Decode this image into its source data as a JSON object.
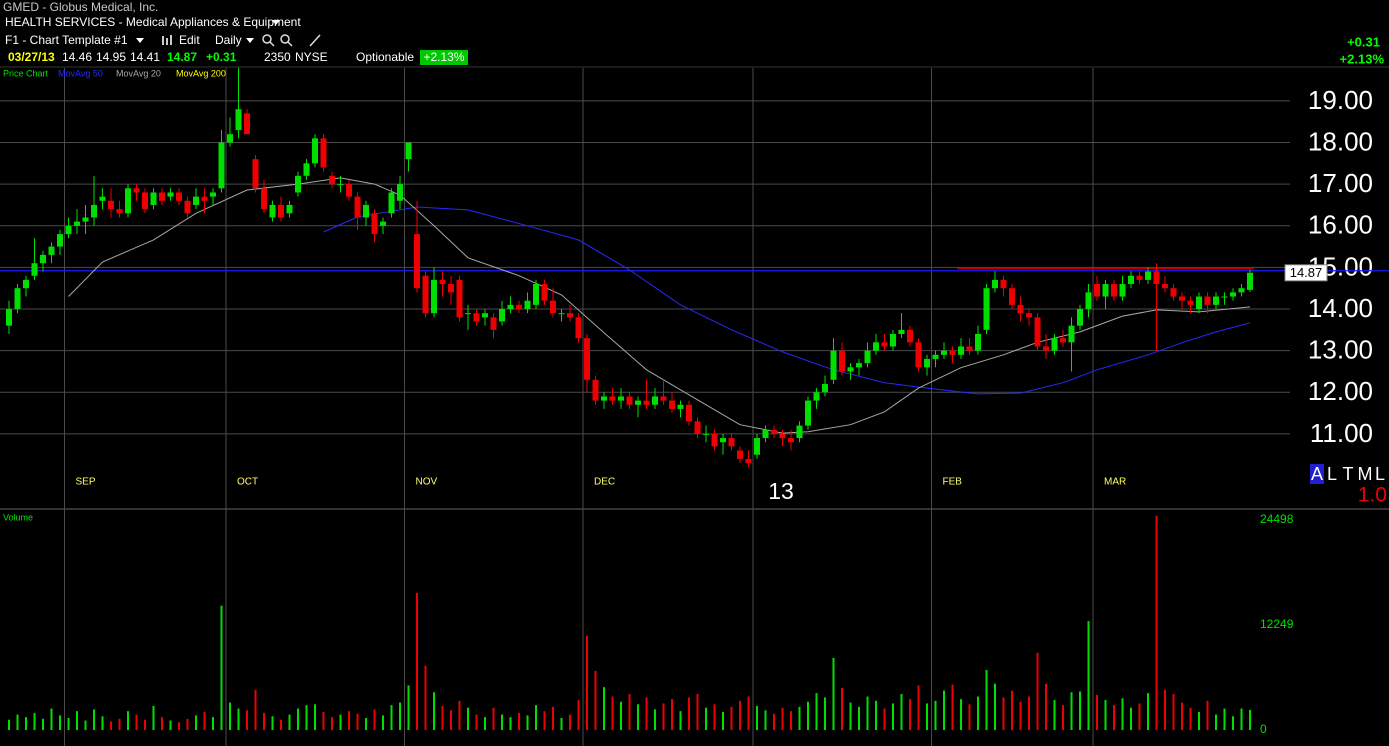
{
  "header": {
    "symbol_line": "GMED - Globus Medical, Inc.",
    "sector": "HEALTH SERVICES - Medical Appliances & Equipment",
    "template": "F1 - Chart Template #1",
    "edit": "Edit",
    "period": "Daily",
    "date": "03/27/13",
    "exchange": "NYSE",
    "optionable": "Optionable",
    "change": "+0.31",
    "change_pct": "+2.13%"
  },
  "toolbar": {
    "modes": [
      "A",
      "L",
      "T",
      "M",
      "L"
    ],
    "scale": "1.0"
  },
  "chart_data": [
    {
      "type": "candlestick",
      "title": "Price Chart",
      "up_color": "#00e000",
      "down_color": "#ee0000",
      "open": [
        13.6,
        14.0,
        14.5,
        14.8,
        15.1,
        15.3,
        15.5,
        15.8,
        16.0,
        16.1,
        16.2,
        16.6,
        16.6,
        16.4,
        16.3,
        16.9,
        16.8,
        16.5,
        16.8,
        16.7,
        16.8,
        16.6,
        16.5,
        16.7,
        16.7,
        16.9,
        18.0,
        18.3,
        18.7,
        17.6,
        16.9,
        16.2,
        16.5,
        16.3,
        16.8,
        17.2,
        17.5,
        18.1,
        17.2,
        17.0,
        17.0,
        16.7,
        16.2,
        16.3,
        16.0,
        16.3,
        16.6,
        17.6,
        15.8,
        14.8,
        13.9,
        14.7,
        14.6,
        14.7,
        13.9,
        13.9,
        13.8,
        13.8,
        13.7,
        14.0,
        14.1,
        14.0,
        14.1,
        14.6,
        14.2,
        13.9,
        13.9,
        13.8,
        13.3,
        12.3,
        11.8,
        11.9,
        11.8,
        11.9,
        11.7,
        11.8,
        11.7,
        11.9,
        11.8,
        11.6,
        11.7,
        11.3,
        11.0,
        11.0,
        10.8,
        10.9,
        10.6,
        10.4,
        10.5,
        10.9,
        11.1,
        11.0,
        10.9,
        10.9,
        11.2,
        11.8,
        12.0,
        12.3,
        13.0,
        12.5,
        12.6,
        12.7,
        13.0,
        13.2,
        13.1,
        13.4,
        13.5,
        13.2,
        12.6,
        12.8,
        12.9,
        13.0,
        12.9,
        13.1,
        13.0,
        13.5,
        14.5,
        14.7,
        14.5,
        14.1,
        13.9,
        13.8,
        13.1,
        13.0,
        13.3,
        13.2,
        13.6,
        14.0,
        14.6,
        14.3,
        14.6,
        14.3,
        14.6,
        14.8,
        14.7,
        14.9,
        14.6,
        14.5,
        14.3,
        14.2,
        14.0,
        14.3,
        14.1,
        14.3,
        14.3,
        14.4,
        14.46
      ],
      "high": [
        14.2,
        14.6,
        14.8,
        15.7,
        15.4,
        15.6,
        15.9,
        16.2,
        16.4,
        16.5,
        17.2,
        16.9,
        16.9,
        16.6,
        17.0,
        17.0,
        16.9,
        16.9,
        16.9,
        16.9,
        16.9,
        16.7,
        16.9,
        16.9,
        16.9,
        18.3,
        18.6,
        19.8,
        18.8,
        17.7,
        17.1,
        16.6,
        16.7,
        16.6,
        17.3,
        17.6,
        18.2,
        18.2,
        17.3,
        17.2,
        17.1,
        16.8,
        16.6,
        16.4,
        16.2,
        16.9,
        17.2,
        18.0,
        16.6,
        14.9,
        15.0,
        14.9,
        14.8,
        14.8,
        14.1,
        14.0,
        14.0,
        13.9,
        14.2,
        14.3,
        14.2,
        14.4,
        14.7,
        14.7,
        14.5,
        14.0,
        14.1,
        13.9,
        13.4,
        12.4,
        12.0,
        12.1,
        12.1,
        12.0,
        11.9,
        12.3,
        12.1,
        12.3,
        12.0,
        11.8,
        11.8,
        11.4,
        11.2,
        11.1,
        11.0,
        11.0,
        10.7,
        10.6,
        11.0,
        11.2,
        11.2,
        11.1,
        11.1,
        11.3,
        11.9,
        12.1,
        12.4,
        13.3,
        13.2,
        12.7,
        12.8,
        13.2,
        13.4,
        13.4,
        13.5,
        13.9,
        13.6,
        13.3,
        12.9,
        13.0,
        13.2,
        13.1,
        13.3,
        13.3,
        13.6,
        14.6,
        14.9,
        14.8,
        14.6,
        14.3,
        14.0,
        13.9,
        13.4,
        13.4,
        13.5,
        13.8,
        14.1,
        14.6,
        14.8,
        14.7,
        14.7,
        14.8,
        14.9,
        14.9,
        15.0,
        15.1,
        14.8,
        14.6,
        14.4,
        14.3,
        14.4,
        14.4,
        14.4,
        14.4,
        14.5,
        14.6,
        14.95
      ],
      "low": [
        13.4,
        13.9,
        14.3,
        14.7,
        14.9,
        15.1,
        15.3,
        15.7,
        15.8,
        15.8,
        16.0,
        16.4,
        16.2,
        16.2,
        16.2,
        16.6,
        16.3,
        16.4,
        16.5,
        16.6,
        16.5,
        16.2,
        16.4,
        16.3,
        16.5,
        16.8,
        17.9,
        18.1,
        18.2,
        16.8,
        16.3,
        16.1,
        16.1,
        16.2,
        16.7,
        17.1,
        17.4,
        17.3,
        16.9,
        16.8,
        16.6,
        15.9,
        16.0,
        15.6,
        15.8,
        16.2,
        16.4,
        17.3,
        14.4,
        13.8,
        13.8,
        14.3,
        14.1,
        13.7,
        13.5,
        13.6,
        13.6,
        13.3,
        13.6,
        13.9,
        13.9,
        13.9,
        14.0,
        14.1,
        13.8,
        13.7,
        13.7,
        13.2,
        12.0,
        11.7,
        11.6,
        11.7,
        11.6,
        11.6,
        11.4,
        11.6,
        11.6,
        11.7,
        11.5,
        11.4,
        11.2,
        10.9,
        10.8,
        10.6,
        10.5,
        10.6,
        10.3,
        10.2,
        10.4,
        10.8,
        10.9,
        10.7,
        10.6,
        10.8,
        11.1,
        11.6,
        11.9,
        12.2,
        12.4,
        12.3,
        12.4,
        12.6,
        12.9,
        13.0,
        13.0,
        13.3,
        13.1,
        12.5,
        12.4,
        12.6,
        12.8,
        12.7,
        12.8,
        12.9,
        12.9,
        13.4,
        14.4,
        14.3,
        14.0,
        13.7,
        13.6,
        13.0,
        12.8,
        12.9,
        13.1,
        12.5,
        13.5,
        13.8,
        14.2,
        14.0,
        14.2,
        14.2,
        14.5,
        14.6,
        14.6,
        13.0,
        14.4,
        14.2,
        14.0,
        13.9,
        13.9,
        13.9,
        14.0,
        14.1,
        14.2,
        14.3,
        14.41
      ],
      "close": [
        14.0,
        14.5,
        14.7,
        15.1,
        15.3,
        15.5,
        15.8,
        16.0,
        16.1,
        16.2,
        16.5,
        16.7,
        16.4,
        16.3,
        16.9,
        16.8,
        16.4,
        16.8,
        16.6,
        16.8,
        16.6,
        16.3,
        16.7,
        16.6,
        16.8,
        18.0,
        18.2,
        18.8,
        18.2,
        16.9,
        16.4,
        16.5,
        16.2,
        16.5,
        17.2,
        17.5,
        18.1,
        17.4,
        17.0,
        17.0,
        16.7,
        16.2,
        16.5,
        15.8,
        16.1,
        16.8,
        17.0,
        18.0,
        14.5,
        13.9,
        14.7,
        14.6,
        14.4,
        13.8,
        13.9,
        13.7,
        13.9,
        13.5,
        14.0,
        14.1,
        14.0,
        14.2,
        14.6,
        14.2,
        13.9,
        13.9,
        13.8,
        13.3,
        12.3,
        11.8,
        11.9,
        11.8,
        11.9,
        11.7,
        11.8,
        11.7,
        11.9,
        11.8,
        11.6,
        11.7,
        11.3,
        11.0,
        11.0,
        10.7,
        10.9,
        10.7,
        10.4,
        10.3,
        10.9,
        11.1,
        11.0,
        10.9,
        10.8,
        11.2,
        11.8,
        12.0,
        12.2,
        13.0,
        12.5,
        12.6,
        12.7,
        13.0,
        13.2,
        13.1,
        13.4,
        13.5,
        13.2,
        12.6,
        12.8,
        12.9,
        13.0,
        12.9,
        13.1,
        13.0,
        13.4,
        14.5,
        14.7,
        14.5,
        14.1,
        13.9,
        13.8,
        13.1,
        13.0,
        13.3,
        13.2,
        13.6,
        14.0,
        14.4,
        14.3,
        14.6,
        14.3,
        14.6,
        14.8,
        14.7,
        14.9,
        14.6,
        14.5,
        14.3,
        14.2,
        14.1,
        14.3,
        14.1,
        14.3,
        14.3,
        14.4,
        14.5,
        14.87
      ],
      "series": [
        {
          "name": "MovAvg 50",
          "color": "#2828ff",
          "x": [
            37,
            41,
            48,
            54,
            61,
            67,
            73,
            79,
            85,
            91,
            97,
            103,
            108,
            114,
            119,
            124,
            128,
            134,
            138,
            142,
            146
          ],
          "values": [
            15.85,
            16.21,
            16.45,
            16.38,
            16.0,
            15.66,
            14.94,
            14.1,
            13.5,
            12.97,
            12.54,
            12.23,
            12.1,
            11.96,
            11.98,
            12.23,
            12.54,
            12.9,
            13.19,
            13.45,
            13.67
          ]
        },
        {
          "name": "MovAvg 20",
          "color": "#a8a8a8",
          "x": [
            7,
            11,
            17,
            22,
            28,
            34,
            39,
            43,
            46,
            50,
            54,
            60,
            65,
            70,
            75,
            81,
            86,
            91,
            94,
            99,
            103,
            107,
            112,
            117,
            121,
            126,
            131,
            135,
            140,
            146
          ],
          "values": [
            14.3,
            15.13,
            15.66,
            16.3,
            16.86,
            17.0,
            17.15,
            17.0,
            16.74,
            16.0,
            15.23,
            14.8,
            14.34,
            13.43,
            12.54,
            11.82,
            11.22,
            11.02,
            11.05,
            11.22,
            11.53,
            12.1,
            12.59,
            12.9,
            13.2,
            13.45,
            13.83,
            13.98,
            13.93,
            14.05
          ]
        },
        {
          "name": "MovAvg 200",
          "color": "#ffff00",
          "x": [],
          "values": []
        }
      ],
      "hlines": [
        {
          "value": 14.92,
          "color": "#1a1aff"
        },
        {
          "value": 14.97,
          "color": "#c00000",
          "from": 112,
          "to": 146
        }
      ],
      "ylim": [
        9.22,
        19.79
      ],
      "yticks": [
        {
          "value": 11,
          "label": "11.00"
        },
        {
          "value": 12,
          "label": "12.00"
        },
        {
          "value": 13,
          "label": "13.00"
        },
        {
          "value": 14,
          "label": "14.00"
        },
        {
          "value": 15,
          "label": "15.00"
        },
        {
          "value": 16,
          "label": "16.00"
        },
        {
          "value": 17,
          "label": "17.00"
        },
        {
          "value": 18,
          "label": "18.00"
        },
        {
          "value": 19,
          "label": "19.00"
        }
      ],
      "xticks": [
        {
          "value": 7,
          "label": "SEP"
        },
        {
          "value": 26,
          "label": "OCT"
        },
        {
          "value": 47,
          "label": "NOV"
        },
        {
          "value": 68,
          "label": "DEC"
        },
        {
          "value": 88,
          "label": "13",
          "major": true
        },
        {
          "value": 109,
          "label": "FEB"
        },
        {
          "value": 128,
          "label": "MAR"
        }
      ],
      "grid": true
    },
    {
      "type": "bar",
      "title": "Volume",
      "values": [
        1200,
        1800,
        1500,
        2000,
        1300,
        2500,
        1700,
        1400,
        2200,
        1100,
        2400,
        1600,
        1000,
        1300,
        2200,
        1800,
        1200,
        2800,
        1500,
        1100,
        900,
        1300,
        1700,
        2100,
        1500,
        14500,
        3200,
        2500,
        2300,
        4700,
        2000,
        1600,
        1200,
        1800,
        2500,
        2900,
        3000,
        2100,
        1500,
        1800,
        2200,
        1900,
        1400,
        2400,
        1700,
        2900,
        3200,
        5200,
        16000,
        7500,
        4400,
        2800,
        2300,
        3400,
        2600,
        1800,
        1500,
        2600,
        1800,
        1500,
        2000,
        1700,
        2900,
        2200,
        2700,
        1400,
        1800,
        3500,
        11000,
        6900,
        5000,
        3900,
        3300,
        4200,
        3000,
        3800,
        2400,
        3100,
        3600,
        2200,
        3800,
        4200,
        2600,
        3000,
        2100,
        2700,
        3400,
        3900,
        2800,
        2300,
        1900,
        2600,
        2200,
        2700,
        3300,
        4300,
        3800,
        8400,
        4900,
        3200,
        2700,
        3900,
        3400,
        2500,
        3100,
        4200,
        3600,
        5200,
        3100,
        3400,
        4600,
        5300,
        3600,
        3000,
        3900,
        7000,
        5400,
        3800,
        4600,
        3300,
        3900,
        9000,
        5400,
        3500,
        2900,
        4400,
        4500,
        12700,
        4100,
        3500,
        2900,
        3700,
        2600,
        3100,
        4300,
        25000,
        4700,
        4200,
        3200,
        2600,
        2100,
        3400,
        1800,
        2500,
        1600,
        2500,
        2350
      ],
      "ylim": [
        -1750,
        25430
      ],
      "yticks": [
        0,
        12249,
        24498
      ]
    }
  ]
}
